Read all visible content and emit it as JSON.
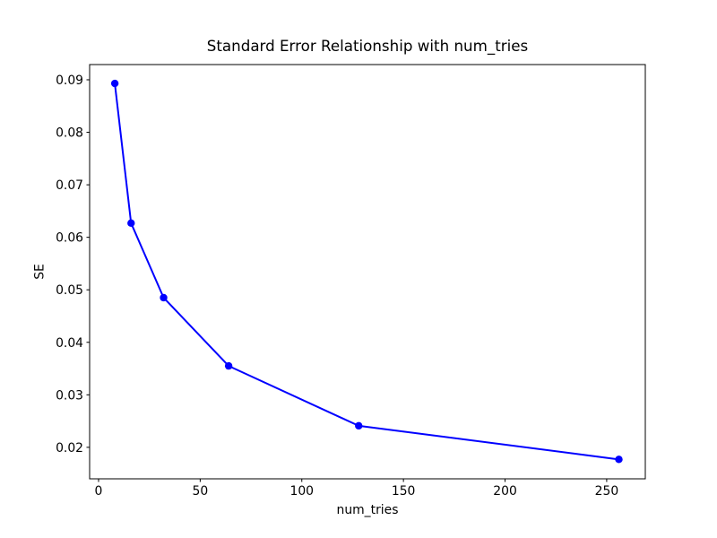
{
  "chart_data": {
    "type": "line",
    "title": "Standard Error Relationship with num_tries",
    "xlabel": "num_tries",
    "ylabel": "SE",
    "series": [
      {
        "name": "SE",
        "x": [
          8,
          16,
          32,
          64,
          128,
          256
        ],
        "y": [
          0.0893,
          0.0627,
          0.0485,
          0.0355,
          0.0241,
          0.0177
        ],
        "color": "#0000ff",
        "marker": "circle",
        "line_style": "solid"
      }
    ],
    "xlim": [
      -4.4,
      269.0
    ],
    "ylim": [
      0.014,
      0.0929
    ],
    "xticks": [
      0,
      50,
      100,
      150,
      200,
      250
    ],
    "yticks": [
      0.02,
      0.03,
      0.04,
      0.05,
      0.06,
      0.07,
      0.08,
      0.09
    ],
    "xtick_labels": [
      "0",
      "50",
      "100",
      "150",
      "200",
      "250"
    ],
    "ytick_labels": [
      "0.02",
      "0.03",
      "0.04",
      "0.05",
      "0.06",
      "0.07",
      "0.08",
      "0.09"
    ],
    "grid": false,
    "legend": null,
    "axes_color": "#000000",
    "background": "#ffffff"
  }
}
